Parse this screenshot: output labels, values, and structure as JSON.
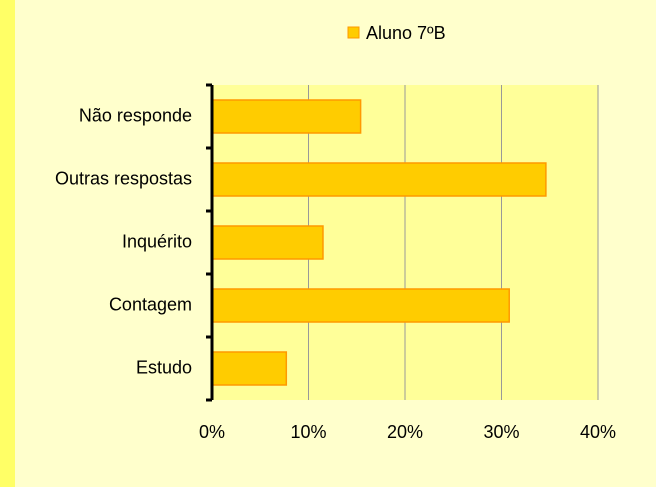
{
  "chart_data": {
    "type": "barh",
    "categories": [
      "Não responde",
      "Outras respostas",
      "Inquérito",
      "Contagem",
      "Estudo"
    ],
    "series": [
      {
        "name": "Aluno 7ºB",
        "color": "#ffcc00",
        "values": [
          15.4,
          34.6,
          11.5,
          30.8,
          7.7
        ]
      }
    ],
    "xlim": [
      0,
      40
    ],
    "xticks": [
      {
        "value": 0,
        "label": "0%"
      },
      {
        "value": 10,
        "label": "10%"
      },
      {
        "value": 20,
        "label": "20%"
      },
      {
        "value": 30,
        "label": "30%"
      },
      {
        "value": 40,
        "label": "40%"
      }
    ],
    "grid": true,
    "legend": "top"
  }
}
